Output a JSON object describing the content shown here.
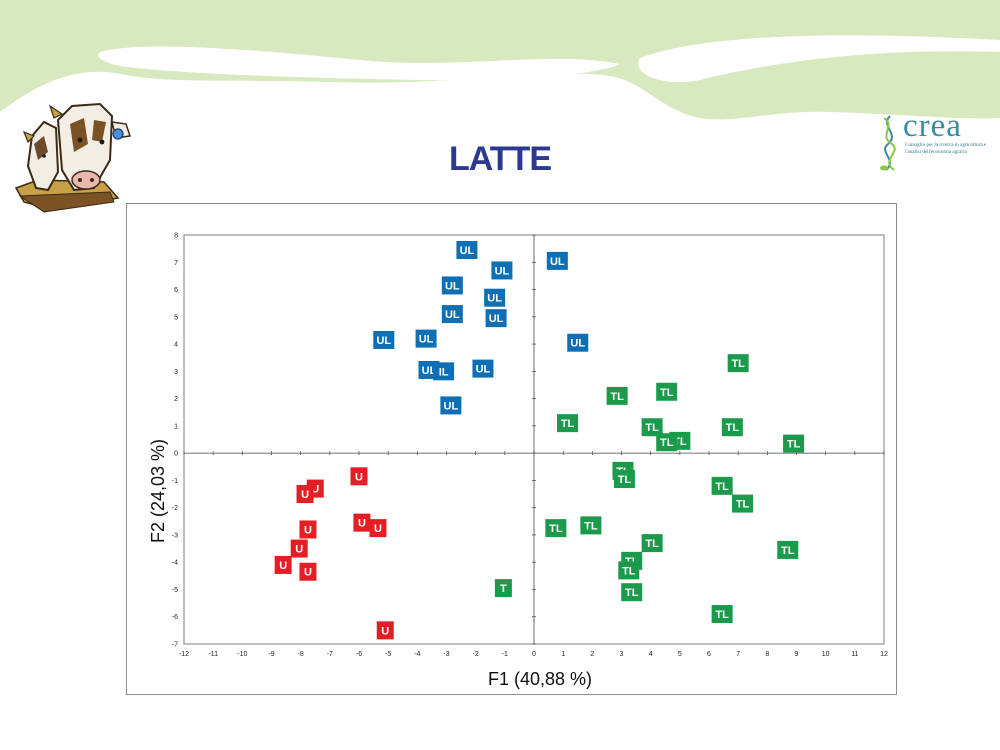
{
  "slide": {
    "title": "LATTE",
    "logo": {
      "word": "crea",
      "subtitle": "Consiglio per la ricerca in agricoltura e l'analisi dell'economia agraria",
      "color": "#3a8aa0"
    },
    "accent_green": "#d8e8bf",
    "clipart": "cows-clipart"
  },
  "chart_data": {
    "type": "scatter",
    "xlabel": "F1 (40,88 %)",
    "ylabel": "F2 (24,03 %)",
    "xlim": [
      -12,
      12
    ],
    "ylim": [
      -7,
      8
    ],
    "xticks": [
      -12,
      -11,
      -10,
      -9,
      -8,
      -7,
      -6,
      -5,
      -4,
      -3,
      -2,
      -1,
      0,
      1,
      2,
      3,
      4,
      5,
      6,
      7,
      8,
      9,
      10,
      11,
      12
    ],
    "yticks": [
      -7,
      -6,
      -5,
      -4,
      -3,
      -2,
      -1,
      0,
      1,
      2,
      3,
      4,
      5,
      6,
      7,
      8
    ],
    "grid": false,
    "series": [
      {
        "label": "UL",
        "color": "#0f6fb5",
        "points": [
          {
            "x": -2.3,
            "y": 7.45,
            "t": "UL"
          },
          {
            "x": -1.1,
            "y": 6.7,
            "t": "UL"
          },
          {
            "x": 0.8,
            "y": 7.05,
            "t": "UL"
          },
          {
            "x": -2.8,
            "y": 6.15,
            "t": "UL"
          },
          {
            "x": -1.35,
            "y": 5.7,
            "t": "UL"
          },
          {
            "x": -2.8,
            "y": 5.1,
            "t": "UL"
          },
          {
            "x": -1.3,
            "y": 4.95,
            "t": "UL"
          },
          {
            "x": -5.15,
            "y": 4.15,
            "t": "UL"
          },
          {
            "x": -3.7,
            "y": 4.2,
            "t": "UL"
          },
          {
            "x": 1.5,
            "y": 4.05,
            "t": "UL"
          },
          {
            "x": -3.6,
            "y": 3.05,
            "t": "UL"
          },
          {
            "x": -3.1,
            "y": 3.0,
            "t": "IL"
          },
          {
            "x": -1.75,
            "y": 3.1,
            "t": "UL"
          },
          {
            "x": -2.85,
            "y": 1.75,
            "t": "UL"
          }
        ]
      },
      {
        "label": "TL",
        "color": "#1a9a4a",
        "points": [
          {
            "x": 7.0,
            "y": 3.3,
            "t": "TL"
          },
          {
            "x": 2.85,
            "y": 2.1,
            "t": "TL"
          },
          {
            "x": 4.55,
            "y": 2.25,
            "t": "TL"
          },
          {
            "x": 1.15,
            "y": 1.1,
            "t": "TL"
          },
          {
            "x": 4.05,
            "y": 0.95,
            "t": "TL"
          },
          {
            "x": 6.8,
            "y": 0.95,
            "t": "TL"
          },
          {
            "x": 5.0,
            "y": 0.45,
            "t": "TL"
          },
          {
            "x": 4.55,
            "y": 0.4,
            "t": "TL"
          },
          {
            "x": 8.9,
            "y": 0.35,
            "t": "TL"
          },
          {
            "x": 3.05,
            "y": -0.65,
            "t": "TL"
          },
          {
            "x": 3.1,
            "y": -0.95,
            "t": "TL"
          },
          {
            "x": 6.45,
            "y": -1.2,
            "t": "TL"
          },
          {
            "x": 7.15,
            "y": -1.85,
            "t": "TL"
          },
          {
            "x": 0.75,
            "y": -2.75,
            "t": "TL"
          },
          {
            "x": 1.95,
            "y": -2.65,
            "t": "TL"
          },
          {
            "x": 4.05,
            "y": -3.3,
            "t": "TL"
          },
          {
            "x": 8.7,
            "y": -3.55,
            "t": "TL"
          },
          {
            "x": 3.35,
            "y": -3.95,
            "t": "TL"
          },
          {
            "x": 3.25,
            "y": -4.3,
            "t": "TL"
          },
          {
            "x": 3.35,
            "y": -5.1,
            "t": "TL"
          },
          {
            "x": 6.45,
            "y": -5.9,
            "t": "TL"
          },
          {
            "x": -1.05,
            "y": -4.95,
            "t": "T"
          }
        ]
      },
      {
        "label": "U",
        "color": "#e31e24",
        "points": [
          {
            "x": -6.0,
            "y": -0.85,
            "t": "U"
          },
          {
            "x": -7.5,
            "y": -1.3,
            "t": "U"
          },
          {
            "x": -7.85,
            "y": -1.5,
            "t": "U"
          },
          {
            "x": -5.9,
            "y": -2.55,
            "t": "U"
          },
          {
            "x": -5.35,
            "y": -2.75,
            "t": "U"
          },
          {
            "x": -7.75,
            "y": -2.8,
            "t": "U"
          },
          {
            "x": -8.05,
            "y": -3.5,
            "t": "U"
          },
          {
            "x": -8.6,
            "y": -4.1,
            "t": "U"
          },
          {
            "x": -7.75,
            "y": -4.35,
            "t": "U"
          },
          {
            "x": -5.1,
            "y": -6.5,
            "t": "U"
          }
        ]
      }
    ]
  }
}
